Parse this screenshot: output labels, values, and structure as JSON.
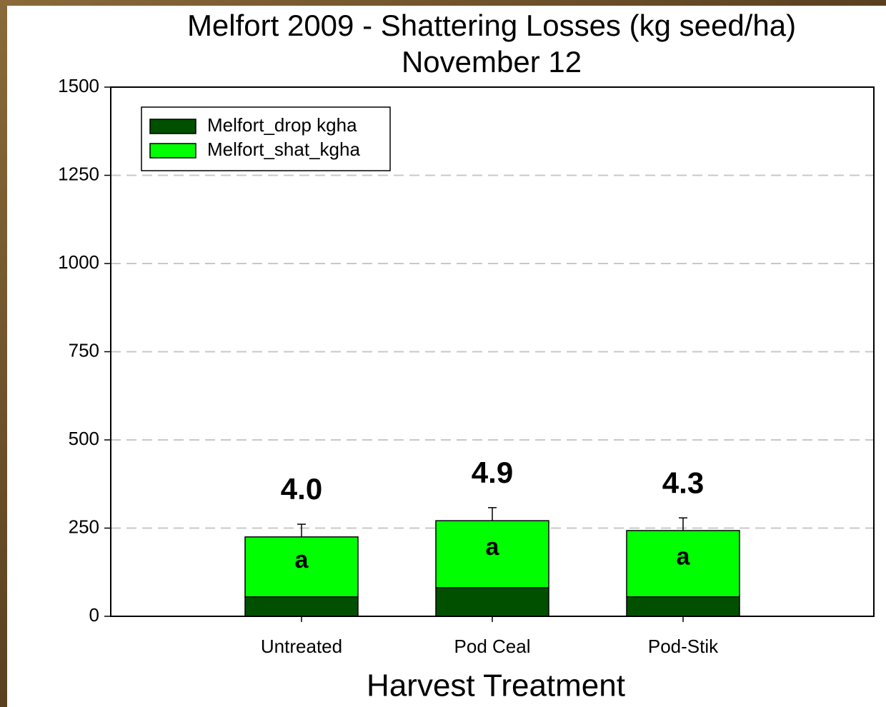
{
  "chart_data": {
    "type": "stacked-bar",
    "title": "Melfort 2009 - Shattering Losses (kg seed/ha)",
    "subtitle": "November 12",
    "x_label": "Harvest Treatment",
    "categories": [
      "Untreated",
      "Pod Ceal",
      "Pod-Stik"
    ],
    "series": [
      {
        "name": "Melfort_drop kgha",
        "color": "#005000",
        "values": [
          55,
          81,
          55
        ]
      },
      {
        "name": "Melfort_shat_kgha",
        "color": "#00ff00",
        "values": [
          170,
          190,
          188
        ],
        "errors": [
          36,
          37,
          36
        ]
      }
    ],
    "bar_labels": [
      "4.0",
      "4.9",
      "4.3"
    ],
    "letters": [
      "a",
      "a",
      "a"
    ],
    "ylim": [
      0,
      1500
    ],
    "yticks": [
      0,
      250,
      500,
      750,
      1000,
      1250,
      1500
    ],
    "grid": true,
    "legend": "upper left"
  }
}
